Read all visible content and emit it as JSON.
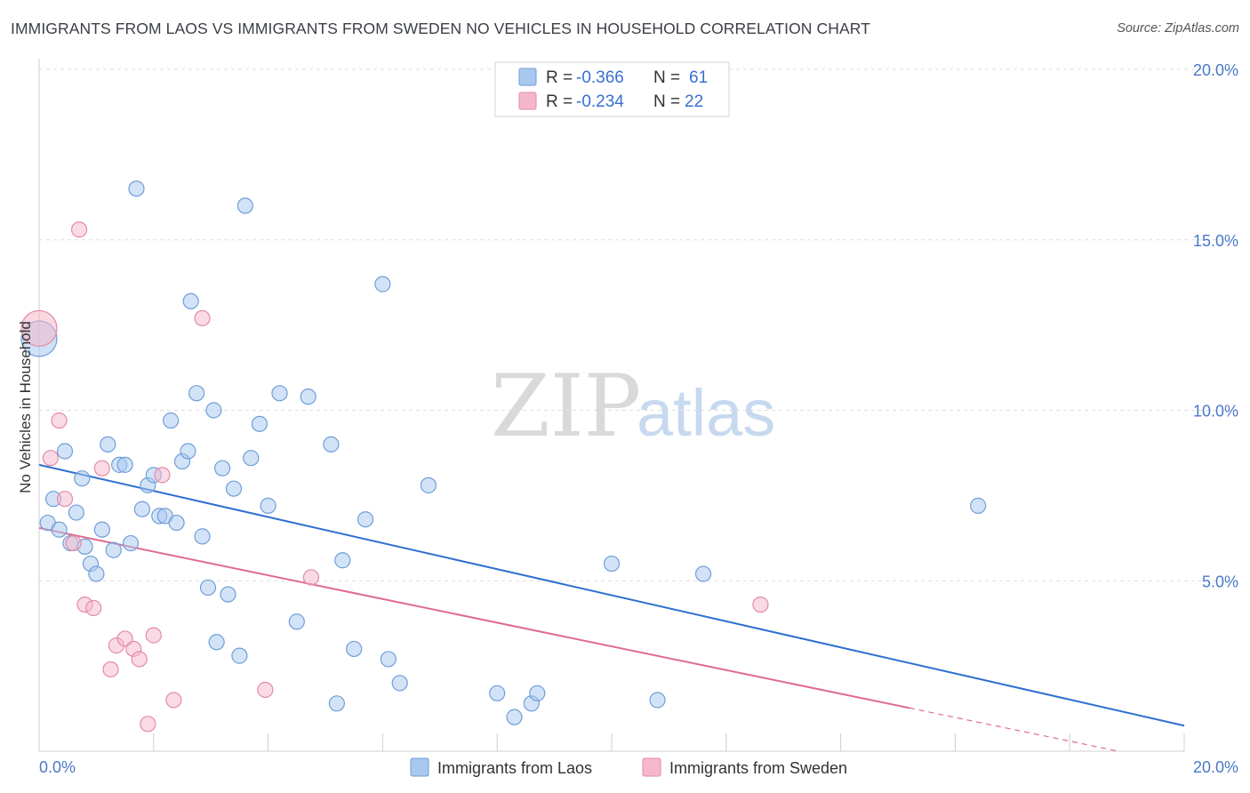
{
  "title": "IMMIGRANTS FROM LAOS VS IMMIGRANTS FROM SWEDEN NO VEHICLES IN HOUSEHOLD CORRELATION CHART",
  "source": "Source: ZipAtlas.com",
  "watermark": {
    "part1": "ZIP",
    "part2": "atlas"
  },
  "legend_top": {
    "rows": [
      {
        "r_label": "R = ",
        "r_value": "-0.366",
        "n_label": "N = ",
        "n_value": "61",
        "color": "#a8c8f0"
      },
      {
        "r_label": "R = ",
        "r_value": "-0.234",
        "n_label": "N = ",
        "n_value": "22",
        "color": "#f5b8cb"
      }
    ]
  },
  "chart_data": {
    "type": "scatter",
    "title": "IMMIGRANTS FROM LAOS VS IMMIGRANTS FROM SWEDEN NO VEHICLES IN HOUSEHOLD CORRELATION CHART",
    "xlabel": "",
    "ylabel": "No Vehicles in Household",
    "xlim": [
      0,
      20
    ],
    "ylim": [
      0,
      20
    ],
    "x_tick_labels": [
      "0.0%",
      "20.0%"
    ],
    "y_ticks": [
      5,
      10,
      15,
      20
    ],
    "y_tick_labels": [
      "5.0%",
      "10.0%",
      "15.0%",
      "20.0%"
    ],
    "grid": true,
    "series": [
      {
        "name": "Immigrants from Laos",
        "color": "#a8c8f0",
        "stroke": "#6f9ed8",
        "line_color": "#2d6fd0",
        "trend": {
          "x": [
            0,
            20
          ],
          "y": [
            8.4,
            0.75
          ]
        },
        "points": [
          [
            0.0,
            12.1,
            "big"
          ],
          [
            0.15,
            6.7
          ],
          [
            0.25,
            7.4
          ],
          [
            0.35,
            6.5
          ],
          [
            0.45,
            8.8
          ],
          [
            0.55,
            6.1
          ],
          [
            0.65,
            7.0
          ],
          [
            0.75,
            8.0
          ],
          [
            0.8,
            6.0
          ],
          [
            0.9,
            5.5
          ],
          [
            1.0,
            5.2
          ],
          [
            1.1,
            6.5
          ],
          [
            1.2,
            9.0
          ],
          [
            1.3,
            5.9
          ],
          [
            1.4,
            8.4
          ],
          [
            1.5,
            8.4
          ],
          [
            1.6,
            6.1
          ],
          [
            1.7,
            16.5
          ],
          [
            1.8,
            7.1
          ],
          [
            1.9,
            7.8
          ],
          [
            2.0,
            8.1
          ],
          [
            2.1,
            6.9
          ],
          [
            2.2,
            6.9
          ],
          [
            2.3,
            9.7
          ],
          [
            2.4,
            6.7
          ],
          [
            2.5,
            8.5
          ],
          [
            2.6,
            8.8
          ],
          [
            2.65,
            13.2
          ],
          [
            2.75,
            10.5
          ],
          [
            2.85,
            6.3
          ],
          [
            2.95,
            4.8
          ],
          [
            3.05,
            10.0
          ],
          [
            3.1,
            3.2
          ],
          [
            3.2,
            8.3
          ],
          [
            3.3,
            4.6
          ],
          [
            3.4,
            7.7
          ],
          [
            3.5,
            2.8
          ],
          [
            3.6,
            16.0
          ],
          [
            3.7,
            8.6
          ],
          [
            3.85,
            9.6
          ],
          [
            4.0,
            7.2
          ],
          [
            4.2,
            10.5
          ],
          [
            4.5,
            3.8
          ],
          [
            4.7,
            10.4
          ],
          [
            5.1,
            9.0
          ],
          [
            5.2,
            1.4
          ],
          [
            5.3,
            5.6
          ],
          [
            5.5,
            3.0
          ],
          [
            5.7,
            6.8
          ],
          [
            6.0,
            13.7
          ],
          [
            6.1,
            2.7
          ],
          [
            6.3,
            2.0
          ],
          [
            6.8,
            7.8
          ],
          [
            8.0,
            1.7
          ],
          [
            8.3,
            1.0
          ],
          [
            8.6,
            1.4
          ],
          [
            8.7,
            1.7
          ],
          [
            10.0,
            5.5
          ],
          [
            10.8,
            1.5
          ],
          [
            11.6,
            5.2
          ],
          [
            16.4,
            7.2
          ]
        ]
      },
      {
        "name": "Immigrants from Sweden",
        "color": "#f5b8cb",
        "stroke": "#e48aa5",
        "line_color": "#e06a93",
        "trend": {
          "x": [
            0,
            20
          ],
          "y": [
            6.55,
            -0.4
          ]
        },
        "trend_solid_until_x": 15.2,
        "points": [
          [
            0.0,
            12.4,
            "big"
          ],
          [
            0.2,
            8.6
          ],
          [
            0.35,
            9.7
          ],
          [
            0.45,
            7.4
          ],
          [
            0.6,
            6.1
          ],
          [
            0.7,
            15.3
          ],
          [
            0.8,
            4.3
          ],
          [
            0.95,
            4.2
          ],
          [
            1.1,
            8.3
          ],
          [
            1.25,
            2.4
          ],
          [
            1.35,
            3.1
          ],
          [
            1.5,
            3.3
          ],
          [
            1.65,
            3.0
          ],
          [
            1.75,
            2.7
          ],
          [
            1.9,
            0.8
          ],
          [
            2.0,
            3.4
          ],
          [
            2.15,
            8.1
          ],
          [
            2.35,
            1.5
          ],
          [
            2.85,
            12.7
          ],
          [
            3.95,
            1.8
          ],
          [
            4.75,
            5.1
          ],
          [
            12.6,
            4.3
          ]
        ]
      }
    ]
  },
  "legend_bottom": [
    {
      "label": "Immigrants from Laos",
      "color": "#a8c8f0"
    },
    {
      "label": "Immigrants from Sweden",
      "color": "#f5b8cb"
    }
  ]
}
